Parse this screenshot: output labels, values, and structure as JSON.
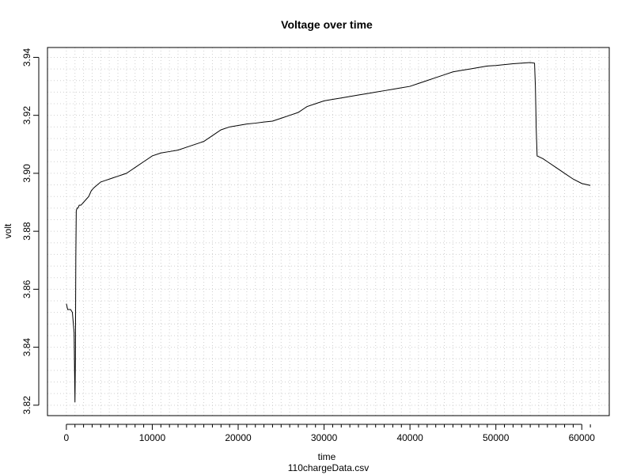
{
  "chart_data": {
    "type": "line",
    "title": "Voltage over time",
    "xlabel": "time",
    "ylabel": "volt",
    "subtitle": "110chargeData.csv",
    "xlim": [
      -2200,
      63200
    ],
    "ylim": [
      3.8164,
      3.9434
    ],
    "x_ticks": [
      0,
      10000,
      20000,
      30000,
      40000,
      50000,
      60000
    ],
    "x_tick_labels": [
      "0",
      "10000",
      "20000",
      "30000",
      "40000",
      "50000",
      "60000"
    ],
    "y_ticks": [
      3.82,
      3.84,
      3.86,
      3.88,
      3.9,
      3.92,
      3.94
    ],
    "y_tick_labels": [
      "3.82",
      "3.84",
      "3.86",
      "3.88",
      "3.90",
      "3.92",
      "3.94"
    ],
    "x_minor_step": 1000,
    "y_minor_step": 0.004,
    "grid": true,
    "legend": "none",
    "series": [
      {
        "color": "#000000",
        "x": [
          0,
          150,
          300,
          500,
          700,
          900,
          1000,
          1050,
          1100,
          1150,
          1250,
          1350,
          1500,
          1700,
          2000,
          2300,
          2600,
          2900,
          3200,
          3600,
          4000,
          4500,
          5000,
          5500,
          6000,
          6500,
          7000,
          7500,
          8000,
          9000,
          10000,
          11000,
          12000,
          13000,
          14000,
          15000,
          16000,
          17000,
          18000,
          19000,
          20000,
          21000,
          22000,
          23000,
          24000,
          25000,
          26000,
          27000,
          28000,
          29000,
          30000,
          31000,
          32000,
          33000,
          34000,
          35000,
          36000,
          37000,
          38000,
          39000,
          40000,
          41000,
          42000,
          43000,
          44000,
          45000,
          46000,
          47000,
          48000,
          49000,
          50000,
          51000,
          52000,
          53000,
          54000,
          54500,
          54600,
          54700,
          54800,
          55500,
          56000,
          57000,
          58000,
          59000,
          60000,
          61000
        ],
        "y": [
          3.855,
          3.853,
          3.853,
          3.853,
          3.852,
          3.845,
          3.821,
          3.836,
          3.871,
          3.887,
          3.888,
          3.888,
          3.889,
          3.889,
          3.89,
          3.891,
          3.892,
          3.894,
          3.895,
          3.896,
          3.897,
          3.8975,
          3.898,
          3.8985,
          3.899,
          3.8995,
          3.9,
          3.901,
          3.902,
          3.904,
          3.906,
          3.907,
          3.9075,
          3.908,
          3.909,
          3.91,
          3.911,
          3.913,
          3.915,
          3.916,
          3.9165,
          3.917,
          3.9173,
          3.9177,
          3.918,
          3.919,
          3.92,
          3.921,
          3.923,
          3.924,
          3.925,
          3.9255,
          3.926,
          3.9265,
          3.927,
          3.9275,
          3.928,
          3.9285,
          3.929,
          3.9295,
          3.93,
          3.931,
          3.932,
          3.933,
          3.934,
          3.935,
          3.9355,
          3.936,
          3.9365,
          3.937,
          3.9372,
          3.9375,
          3.9378,
          3.938,
          3.9382,
          3.938,
          3.93,
          3.915,
          3.906,
          3.905,
          3.904,
          3.902,
          3.9,
          3.898,
          3.8965,
          3.8958
        ]
      }
    ]
  }
}
